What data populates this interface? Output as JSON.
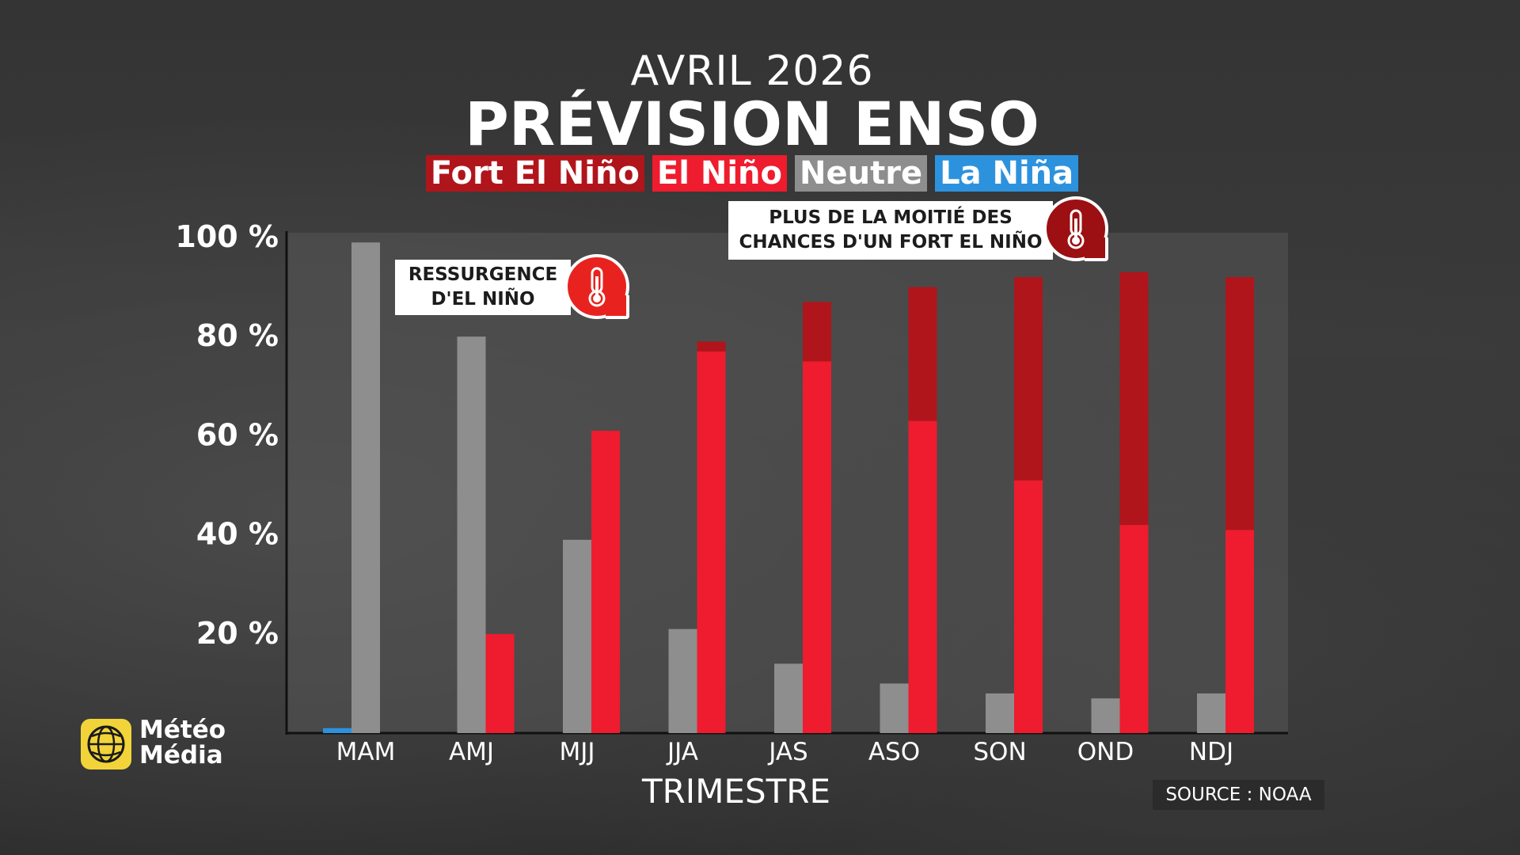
{
  "header": {
    "subtitle": "AVRIL 2026",
    "title": "PRÉVISION ENSO"
  },
  "legend": [
    {
      "label": "Fort El Niño",
      "color": "#b0151c"
    },
    {
      "label": "El Niño",
      "color": "#ee1c2e"
    },
    {
      "label": "Neutre",
      "color": "#8e8e8e"
    },
    {
      "label": "La Niña",
      "color": "#2d92dd"
    }
  ],
  "chart_data": {
    "type": "bar",
    "xlabel": "TRIMESTRE",
    "ylabel": "",
    "ylim": [
      0,
      100
    ],
    "yticks": [
      "20 %",
      "40 %",
      "60 %",
      "80 %",
      "100 %"
    ],
    "ytick_values": [
      20,
      40,
      60,
      80,
      100
    ],
    "categories": [
      "MAM",
      "AMJ",
      "MJJ",
      "JJA",
      "JAS",
      "ASO",
      "SON",
      "OND",
      "NDJ"
    ],
    "series": [
      {
        "name": "La Niña",
        "values": [
          1,
          0,
          0,
          0,
          0,
          0,
          0,
          0,
          0
        ]
      },
      {
        "name": "Neutre",
        "values": [
          99,
          80,
          39,
          21,
          14,
          10,
          8,
          7,
          8
        ]
      },
      {
        "name": "El Niño",
        "values": [
          0,
          20,
          61,
          77,
          75,
          63,
          51,
          42,
          41
        ]
      },
      {
        "name": "Fort El Niño",
        "values": [
          0,
          0,
          0,
          2,
          12,
          27,
          41,
          51,
          51
        ]
      }
    ],
    "colors": {
      "la_nina": "#2d92dd",
      "neutre": "#8e8e8e",
      "el_nino": "#ee1c2e",
      "fort_el_nino": "#b0151c"
    },
    "stacking": "El Niño and Fort El Niño stacked; Neutre separate; La Niña separate"
  },
  "callouts": [
    {
      "line1": "RESSURGENCE",
      "line2": "D'EL NIÑO",
      "icon": "thermometer-icon",
      "color": "#e8231f"
    },
    {
      "line1": "PLUS DE LA MOITIÉ DES",
      "line2": "CHANCES D'UN FORT EL NIÑO",
      "icon": "thermometer-icon",
      "color": "#9c0f12"
    }
  ],
  "logo": {
    "line1": "Météo",
    "line2": "Média"
  },
  "source": "SOURCE : NOAA"
}
